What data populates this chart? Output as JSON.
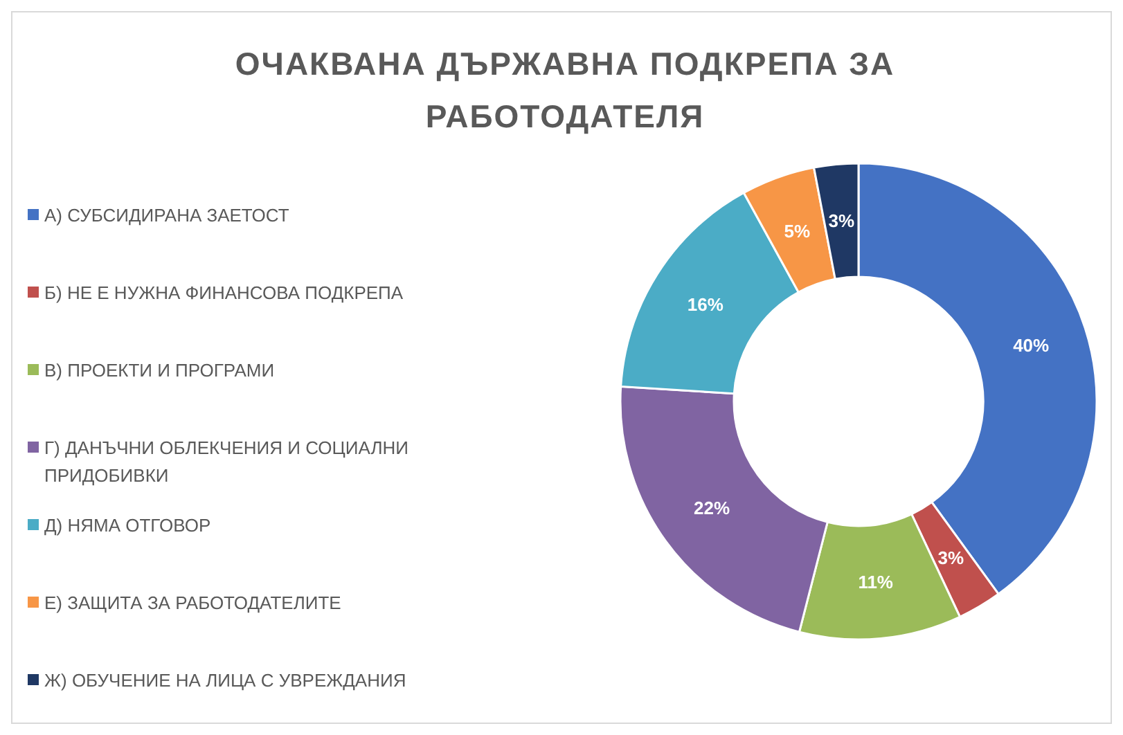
{
  "chart_data": {
    "type": "donut",
    "title": "ОЧАКВАНА ДЪРЖАВНА ПОДКРЕПА ЗА РАБОТОДАТЕЛЯ",
    "categories": [
      "А) СУБСИДИРАНА ЗАЕТОСТ",
      "Б) НЕ Е НУЖНА ФИНАНСОВА ПОДКРЕПА",
      "В) ПРОЕКТИ И ПРОГРАМИ",
      "Г) ДАНЪЧНИ ОБЛЕКЧЕНИЯ И СОЦИАЛНИ ПРИДОБИВКИ",
      "Д) НЯМА ОТГОВОР",
      "Е) ЗАЩИТА ЗА РАБОТОДАТЕЛИТЕ",
      "Ж) ОБУЧЕНИЕ НА ЛИЦА С УВРЕЖДАНИЯ"
    ],
    "values": [
      40,
      3,
      11,
      22,
      16,
      5,
      3
    ],
    "value_labels": [
      "40%",
      "3%",
      "11%",
      "22%",
      "16%",
      "5%",
      "3%"
    ],
    "colors": [
      "#4472c4",
      "#c0504d",
      "#9bbb59",
      "#8064a2",
      "#4bacc6",
      "#f79646",
      "#1f3864"
    ],
    "legend": "left"
  }
}
